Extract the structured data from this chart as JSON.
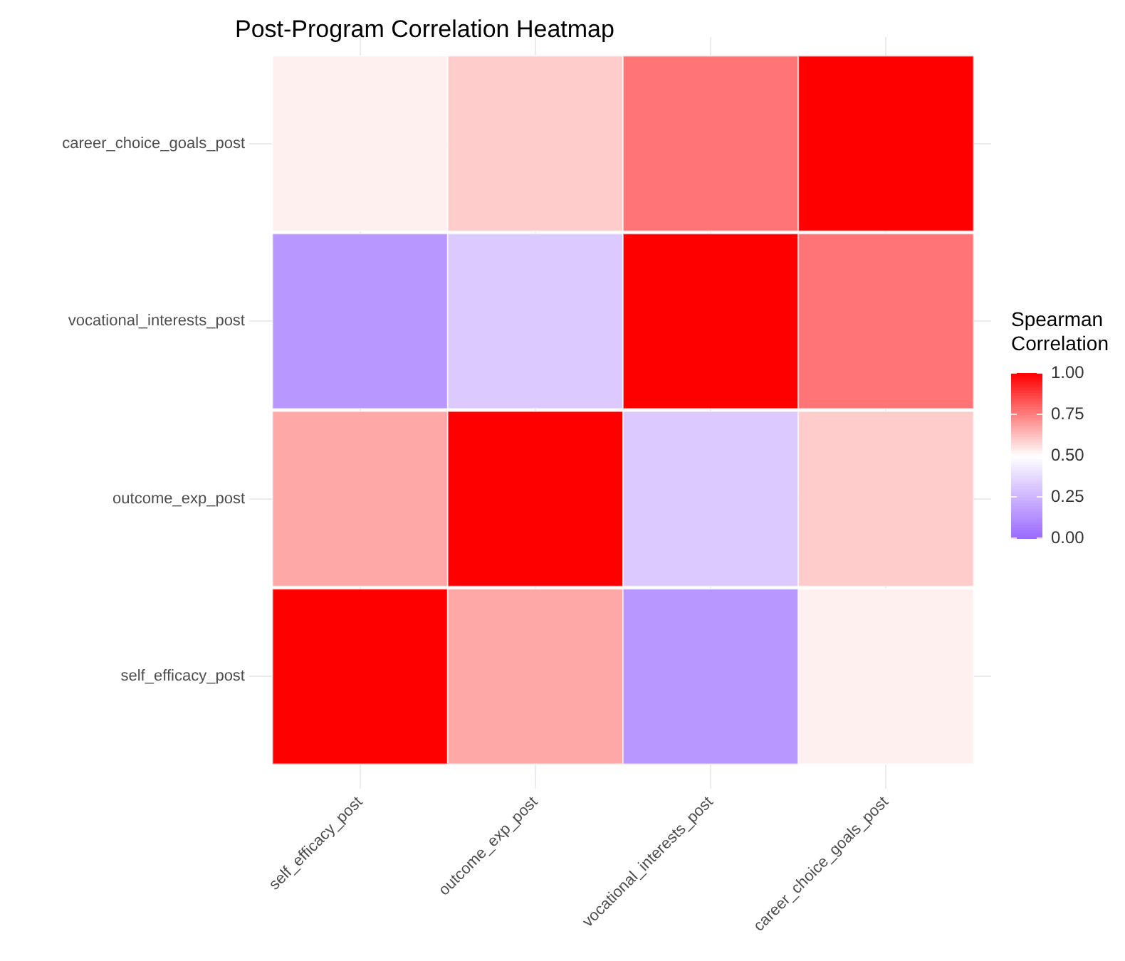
{
  "chart_data": {
    "type": "heatmap",
    "title": "Post-Program Correlation Heatmap",
    "categories": [
      "self_efficacy_post",
      "outcome_exp_post",
      "vocational_interests_post",
      "career_choice_goals_post"
    ],
    "y_categories": [
      "career_choice_goals_post",
      "vocational_interests_post",
      "outcome_exp_post",
      "self_efficacy_post"
    ],
    "cells": [
      [
        0.53,
        0.6,
        0.77,
        1
      ],
      [
        0.15,
        0.32,
        1,
        0.77
      ],
      [
        0.67,
        1,
        0.32,
        0.6
      ],
      [
        1,
        0.67,
        0.15,
        0.53
      ]
    ],
    "clabel": "Spearman Correlation",
    "clim": [
      0,
      1
    ],
    "cticks": [
      {
        "value": 0,
        "label": "0.00"
      },
      {
        "value": 0.25,
        "label": "0.25"
      },
      {
        "value": 0.5,
        "label": "0.50"
      },
      {
        "value": 0.75,
        "label": "0.75"
      },
      {
        "value": 1,
        "label": "1.00"
      }
    ],
    "grid": true
  }
}
